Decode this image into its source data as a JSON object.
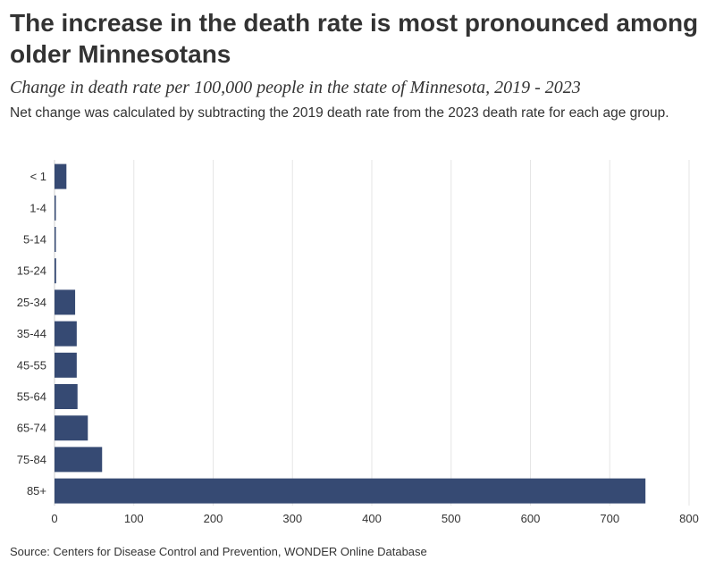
{
  "chart_data": {
    "type": "bar",
    "orientation": "horizontal",
    "title": "The increase in the death rate is most pronounced among older Minnesotans",
    "subtitle": "Change in death rate per 100,000 people in the state of Minnesota, 2019 - 2023",
    "note": "Net change was calculated by subtracting the 2019 death rate from the 2023 death rate for each age group.",
    "source": "Source: Centers for Disease Control and Prevention, WONDER Online Database",
    "categories": [
      "< 1",
      "1-4",
      "5-14",
      "15-24",
      "25-34",
      "35-44",
      "45-55",
      "55-64",
      "65-74",
      "75-84",
      "85+"
    ],
    "values": [
      15,
      1,
      1,
      2,
      26,
      28,
      28,
      29,
      42,
      60,
      745
    ],
    "xlim": [
      0,
      800
    ],
    "xticks": [
      0,
      100,
      200,
      300,
      400,
      500,
      600,
      700,
      800
    ],
    "grid": true,
    "bar_color": "#364a73",
    "grid_color": "#e6e6e6"
  }
}
